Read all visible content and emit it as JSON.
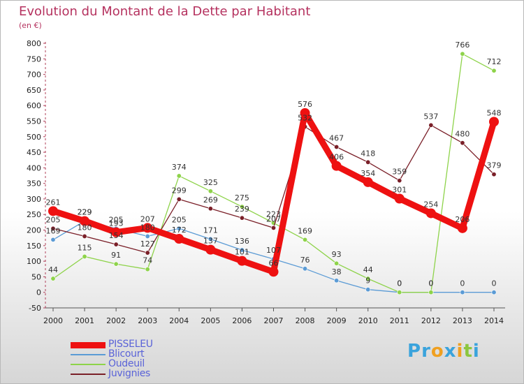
{
  "title": "Evolution du Montant de la Dette par Habitant",
  "unit": "(en €)",
  "brand": {
    "letters": [
      {
        "ch": "P",
        "color": "#3aa3dc"
      },
      {
        "ch": "r",
        "color": "#3aa3dc"
      },
      {
        "ch": "o",
        "color": "#f0a020"
      },
      {
        "ch": "x",
        "color": "#3aa3dc"
      },
      {
        "ch": "i",
        "color": "#f0a020"
      },
      {
        "ch": "t",
        "color": "#8cc63f"
      },
      {
        "ch": "i",
        "color": "#3aa3dc"
      }
    ]
  },
  "chart_data": {
    "type": "line",
    "title": "Evolution du Montant de la Dette par Habitant",
    "ylabel": "(en €)",
    "xlabel": "",
    "ylim": [
      -50,
      800
    ],
    "ytick_step": 50,
    "grid": false,
    "legend": "bottom-left",
    "x": [
      "2000",
      "2001",
      "2002",
      "2003",
      "2004",
      "2005",
      "2006",
      "2007",
      "2008",
      "2009",
      "2010",
      "2011",
      "2012",
      "2013",
      "2014"
    ],
    "series": [
      {
        "name": "PISSELEU",
        "color": "#ee1111",
        "width": 9,
        "marker": 7,
        "values": [
          261,
          229,
          193,
          207,
          172,
          137,
          101,
          66,
          576,
          406,
          354,
          301,
          254,
          206,
          548
        ]
      },
      {
        "name": "Blicourt",
        "color": "#5b9bd5",
        "width": 1.3,
        "marker": 3.2,
        "values": [
          169,
          229,
          205,
          180,
          205,
          171,
          136,
          107,
          76,
          38,
          9,
          0,
          0,
          0,
          0
        ]
      },
      {
        "name": "Oudeuil",
        "color": "#8ed34a",
        "width": 1.3,
        "marker": 3.2,
        "values": [
          44,
          115,
          91,
          74,
          374,
          325,
          275,
          223,
          169,
          93,
          44,
          0,
          0,
          766,
          712
        ]
      },
      {
        "name": "Juvignies",
        "color": "#7a1f28",
        "width": 1.3,
        "marker": 3.2,
        "values": [
          205,
          180,
          154,
          127,
          299,
          269,
          239,
          207,
          532,
          467,
          418,
          359,
          537,
          480,
          379
        ]
      }
    ]
  }
}
